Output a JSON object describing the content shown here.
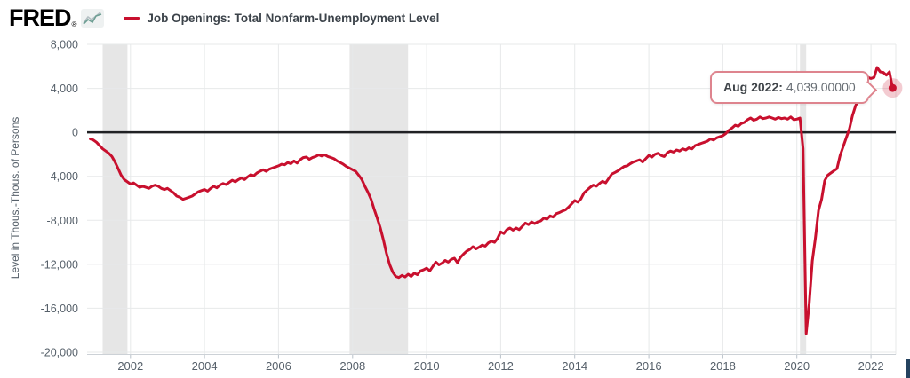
{
  "header": {
    "logo_text": "FRED",
    "logo_mark": "®",
    "series_label": "Job Openings: Total Nonfarm-Unemployment Level"
  },
  "tooltip": {
    "label": "Aug 2022:",
    "value": "4,039.00000",
    "border_color": "#de848e"
  },
  "chart_data": {
    "type": "line",
    "title": "Job Openings: Total Nonfarm-Unemployment Level",
    "xlabel": "",
    "ylabel": "Level in Thous.-Thous. of Persons",
    "ylim": [
      -20000,
      8000
    ],
    "xlim_years": [
      2000.83,
      2022.67
    ],
    "grid": true,
    "legend_position": "top-left",
    "line_color": "#c8102e",
    "recession_color": "#e6e6e6",
    "grid_color": "#e7e9ea",
    "axis_text_color": "#56606a",
    "zero_line_color": "#202124",
    "highlight_halo_color": "rgba(200,16,46,0.22)",
    "y_ticks": [
      {
        "value": 8000,
        "label": "8,000"
      },
      {
        "value": 4000,
        "label": "4,000"
      },
      {
        "value": 0,
        "label": "0"
      },
      {
        "value": -4000,
        "label": "-4,000"
      },
      {
        "value": -8000,
        "label": "-8,000"
      },
      {
        "value": -12000,
        "label": "-12,000"
      },
      {
        "value": -16000,
        "label": "-16,000"
      },
      {
        "value": -20000,
        "label": "-20,000"
      }
    ],
    "x_ticks": [
      {
        "value": 2002,
        "label": "2002"
      },
      {
        "value": 2004,
        "label": "2004"
      },
      {
        "value": 2006,
        "label": "2006"
      },
      {
        "value": 2008,
        "label": "2008"
      },
      {
        "value": 2010,
        "label": "2010"
      },
      {
        "value": 2012,
        "label": "2012"
      },
      {
        "value": 2014,
        "label": "2014"
      },
      {
        "value": 2016,
        "label": "2016"
      },
      {
        "value": 2018,
        "label": "2018"
      },
      {
        "value": 2020,
        "label": "2020"
      },
      {
        "value": 2022,
        "label": "2022"
      }
    ],
    "recession_bands": [
      [
        2001.25,
        2001.92
      ],
      [
        2007.92,
        2009.5
      ],
      [
        2020.083,
        2020.25
      ]
    ],
    "highlight_point": {
      "date": "Aug 2022",
      "value": 4039,
      "value_label": "4,039.00000"
    },
    "series": [
      {
        "name": "Job Openings: Total Nonfarm-Unemployment Level",
        "units": "Thousands of Persons",
        "frequency": "monthly",
        "start_year": 2000,
        "start_month": 12,
        "values": [
          -600,
          -700,
          -900,
          -1200,
          -1500,
          -1700,
          -1900,
          -2200,
          -2700,
          -3300,
          -3900,
          -4300,
          -4500,
          -4700,
          -4600,
          -4800,
          -5000,
          -4900,
          -5000,
          -5100,
          -4900,
          -4800,
          -4900,
          -5100,
          -5200,
          -5100,
          -5300,
          -5500,
          -5800,
          -5900,
          -6100,
          -6000,
          -5900,
          -5800,
          -5600,
          -5400,
          -5300,
          -5200,
          -5350,
          -5100,
          -4900,
          -5050,
          -4800,
          -4650,
          -4750,
          -4550,
          -4350,
          -4500,
          -4300,
          -4150,
          -4300,
          -4050,
          -3850,
          -3950,
          -3700,
          -3550,
          -3400,
          -3550,
          -3350,
          -3250,
          -3150,
          -3050,
          -2900,
          -2950,
          -2750,
          -2850,
          -2600,
          -2800,
          -2500,
          -2300,
          -2250,
          -2450,
          -2300,
          -2200,
          -2050,
          -2150,
          -2050,
          -2200,
          -2300,
          -2400,
          -2600,
          -2750,
          -2900,
          -3100,
          -3250,
          -3400,
          -3550,
          -3900,
          -4300,
          -4900,
          -5450,
          -6100,
          -7000,
          -7800,
          -8700,
          -9800,
          -11000,
          -12000,
          -12700,
          -13100,
          -13200,
          -13000,
          -13150,
          -12900,
          -13100,
          -12800,
          -12950,
          -12600,
          -12500,
          -12350,
          -12600,
          -12200,
          -11800,
          -12050,
          -11900,
          -11650,
          -11800,
          -11550,
          -11450,
          -11850,
          -11350,
          -11050,
          -10800,
          -10650,
          -10400,
          -10600,
          -10450,
          -10250,
          -10350,
          -10050,
          -9900,
          -10000,
          -9650,
          -9050,
          -9200,
          -8850,
          -8700,
          -8900,
          -8700,
          -8850,
          -8550,
          -8250,
          -8400,
          -8150,
          -8300,
          -8150,
          -8050,
          -7800,
          -7900,
          -7600,
          -7700,
          -7400,
          -7300,
          -7150,
          -7050,
          -6800,
          -6500,
          -6200,
          -6350,
          -6050,
          -5500,
          -5250,
          -5000,
          -4800,
          -4900,
          -4650,
          -4450,
          -4600,
          -4200,
          -3800,
          -3650,
          -3500,
          -3300,
          -3100,
          -3050,
          -2850,
          -2700,
          -2600,
          -2500,
          -2700,
          -2400,
          -2100,
          -2250,
          -2000,
          -1900,
          -2100,
          -2200,
          -1850,
          -1700,
          -1800,
          -1600,
          -1700,
          -1500,
          -1600,
          -1400,
          -1500,
          -1200,
          -1100,
          -1000,
          -900,
          -800,
          -600,
          -700,
          -500,
          -400,
          -300,
          -100,
          200,
          400,
          650,
          550,
          800,
          900,
          1150,
          1300,
          1100,
          1200,
          1400,
          1250,
          1300,
          1400,
          1300,
          1200,
          1350,
          1250,
          1300,
          1200,
          1400,
          1150,
          1200,
          1300,
          -1500,
          -18300,
          -15600,
          -11700,
          -9600,
          -7100,
          -6100,
          -4400,
          -3900,
          -3700,
          -3500,
          -3300,
          -2100,
          -1300,
          -500,
          300,
          1500,
          2400,
          3000,
          3600,
          4600,
          5000,
          4900,
          5000,
          5900,
          5500,
          5450,
          5200,
          5500,
          4039
        ]
      }
    ]
  }
}
